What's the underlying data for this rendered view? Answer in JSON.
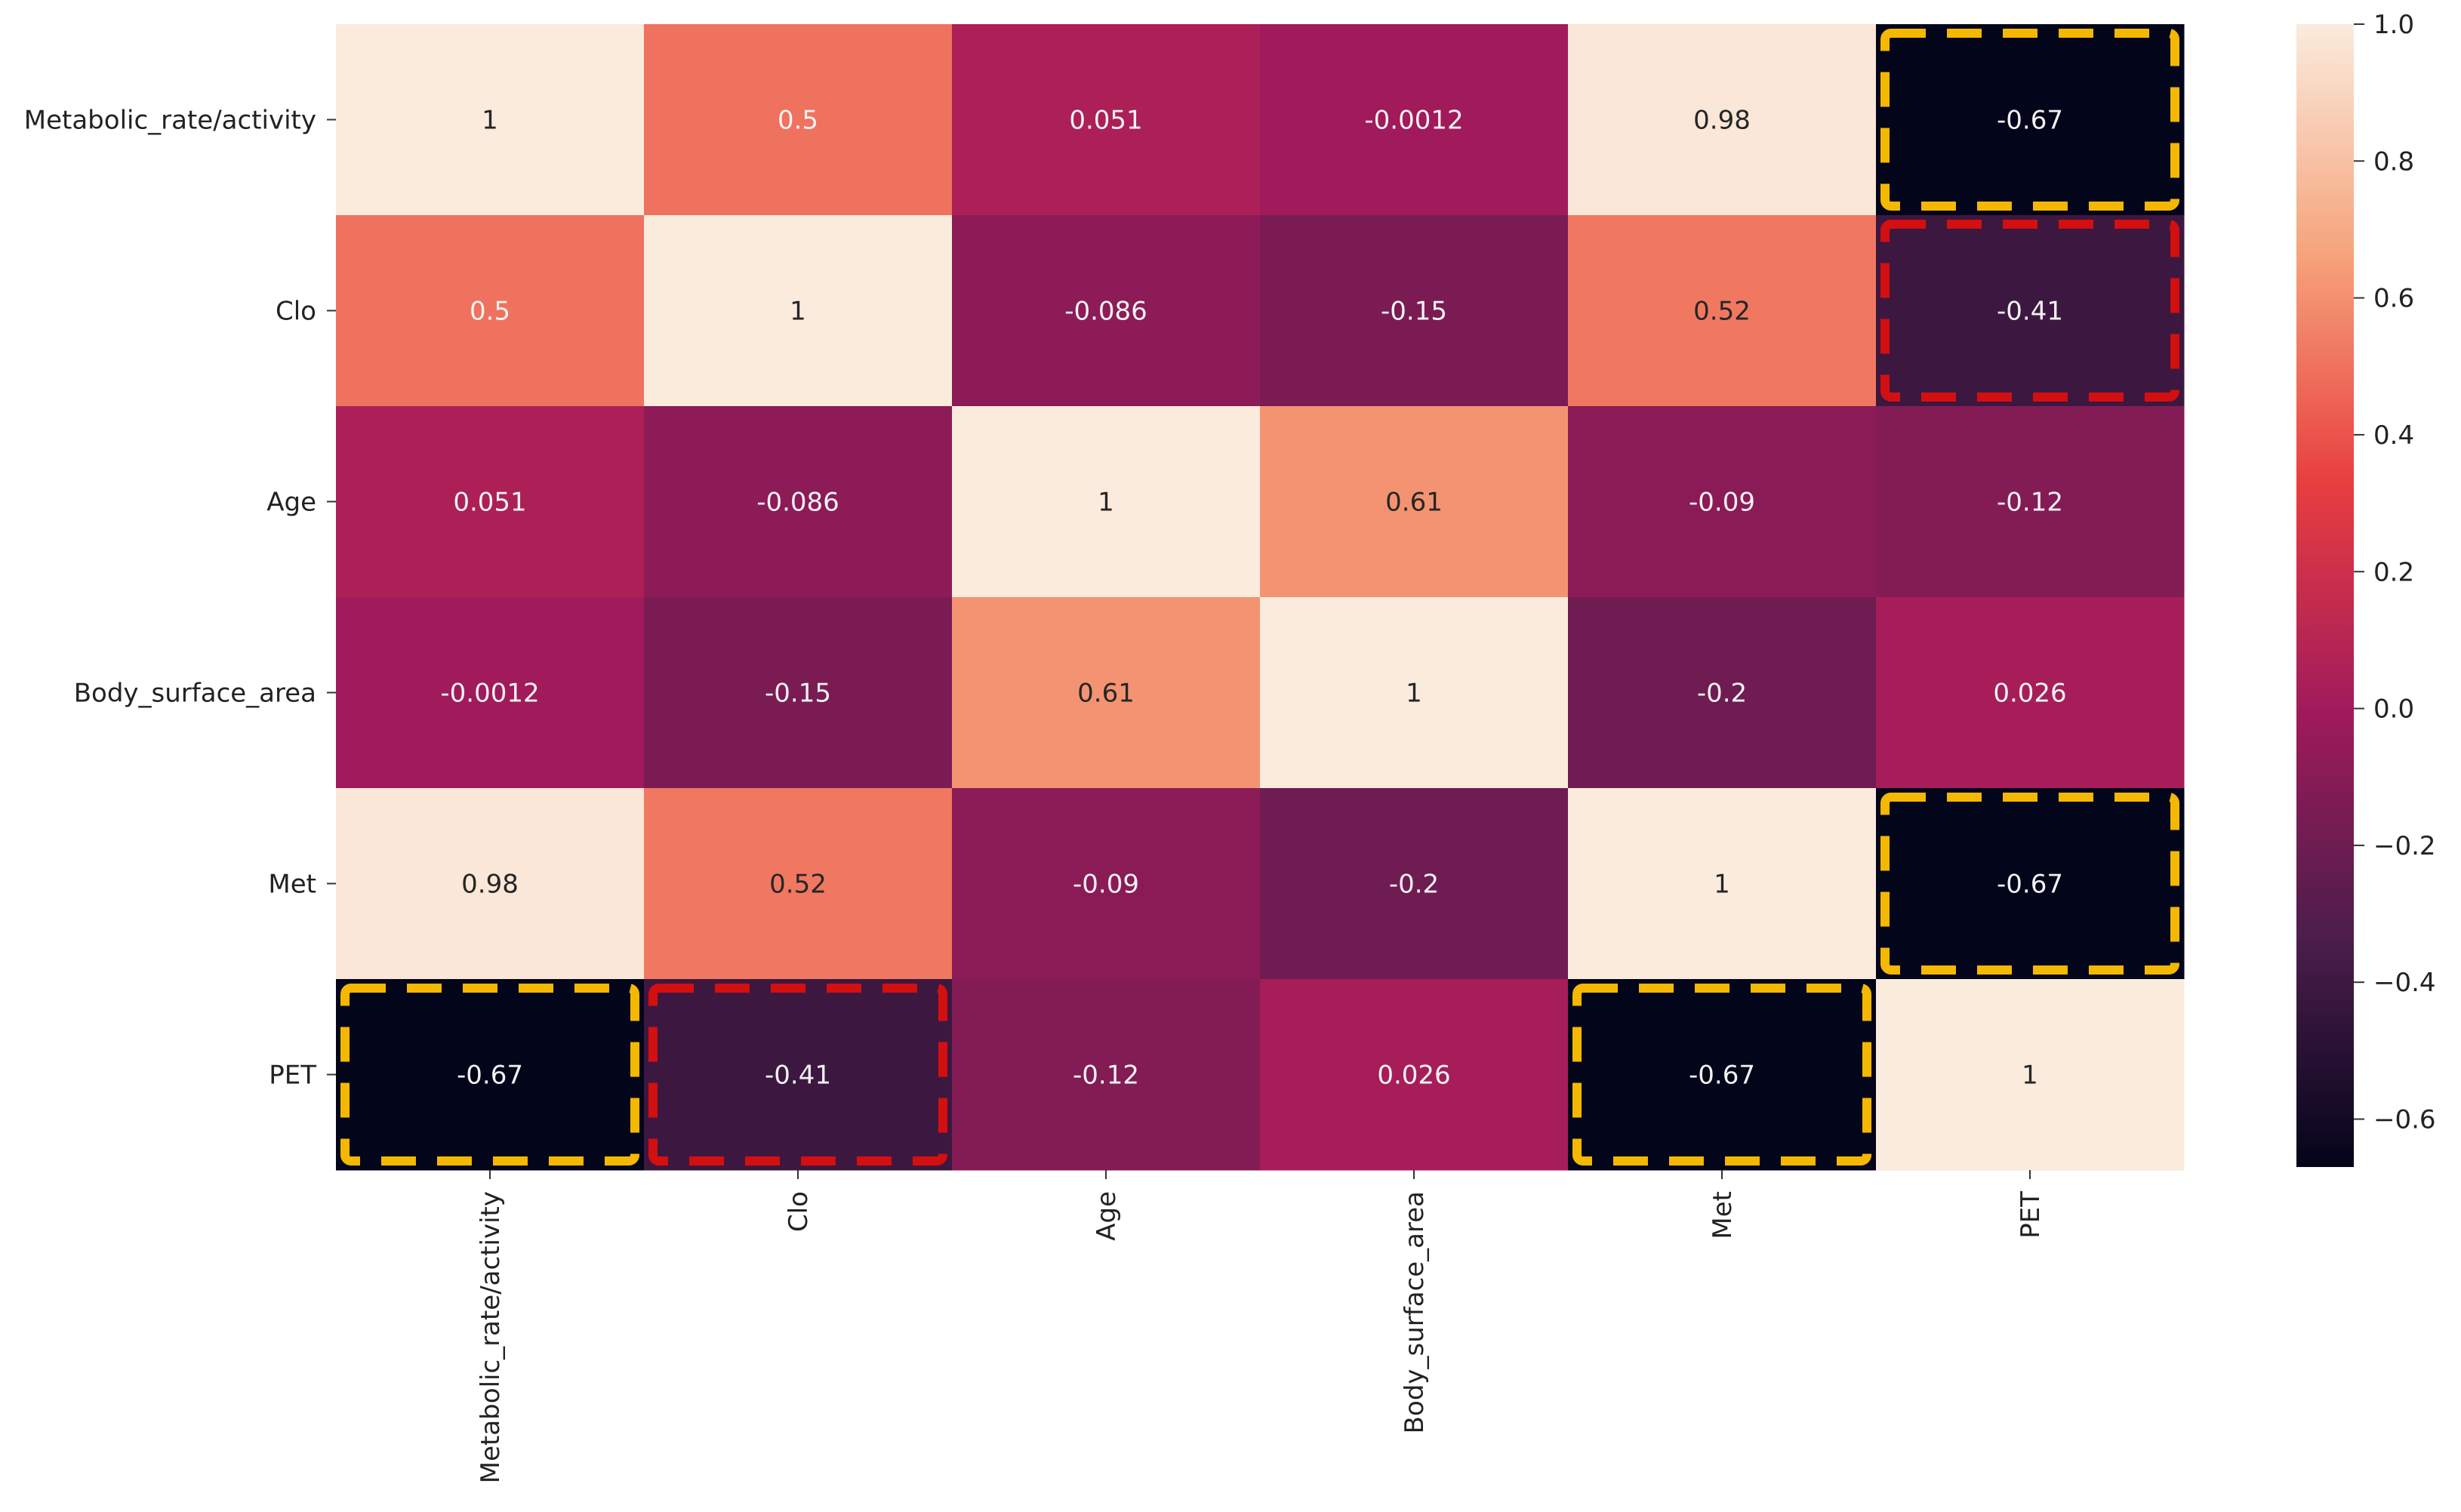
{
  "chart_data": {
    "type": "heatmap",
    "title": "",
    "xlabel": "",
    "ylabel": "",
    "row_labels": [
      "Metabolic_rate/activity",
      "Clo",
      "Age",
      "Body_surface_area",
      "Met",
      "PET"
    ],
    "col_labels": [
      "Metabolic_rate/activity",
      "Clo",
      "Age",
      "Body_surface_area",
      "Met",
      "PET"
    ],
    "matrix": [
      [
        1,
        0.5,
        0.051,
        -0.0012,
        0.98,
        -0.67
      ],
      [
        0.5,
        1,
        -0.086,
        -0.15,
        0.52,
        -0.41
      ],
      [
        0.051,
        -0.086,
        1,
        0.61,
        -0.09,
        -0.12
      ],
      [
        -0.0012,
        -0.15,
        0.61,
        1,
        -0.2,
        0.026
      ],
      [
        0.98,
        0.52,
        -0.09,
        -0.2,
        1,
        -0.67
      ],
      [
        -0.67,
        -0.41,
        -0.12,
        0.026,
        -0.67,
        1
      ]
    ],
    "cell_text": [
      [
        "1",
        "0.5",
        "0.051",
        "-0.0012",
        "0.98",
        "-0.67"
      ],
      [
        "0.5",
        "1",
        "-0.086",
        "-0.15",
        "0.52",
        "-0.41"
      ],
      [
        "0.051",
        "-0.086",
        "1",
        "0.61",
        "-0.09",
        "-0.12"
      ],
      [
        "-0.0012",
        "-0.15",
        "0.61",
        "1",
        "-0.2",
        "0.026"
      ],
      [
        "0.98",
        "0.52",
        "-0.09",
        "-0.2",
        "1",
        "-0.67"
      ],
      [
        "-0.67",
        "-0.41",
        "-0.12",
        "0.026",
        "-0.67",
        "1"
      ]
    ],
    "colorbar": {
      "colormap": "rocket",
      "vmin": -0.67,
      "vmax": 1.0,
      "ticks": [
        1.0,
        0.8,
        0.6,
        0.4,
        0.2,
        0.0,
        -0.2,
        -0.4,
        -0.6
      ],
      "tick_labels": [
        "1.0",
        "0.8",
        "0.6",
        "0.4",
        "0.2",
        "0.0",
        "−0.2",
        "−0.4",
        "−0.6"
      ],
      "stops": [
        "#03051a",
        "#4c1d4b",
        "#a11a5b",
        "#e83f3f",
        "#f6a47c",
        "#faebdd"
      ]
    },
    "highlights": [
      {
        "row": 0,
        "col": 5,
        "color": "#f5b800"
      },
      {
        "row": 4,
        "col": 5,
        "color": "#f5b800"
      },
      {
        "row": 5,
        "col": 0,
        "color": "#f5b800"
      },
      {
        "row": 5,
        "col": 4,
        "color": "#f5b800"
      },
      {
        "row": 1,
        "col": 5,
        "color": "#d40f0f"
      },
      {
        "row": 5,
        "col": 1,
        "color": "#d40f0f"
      }
    ]
  }
}
